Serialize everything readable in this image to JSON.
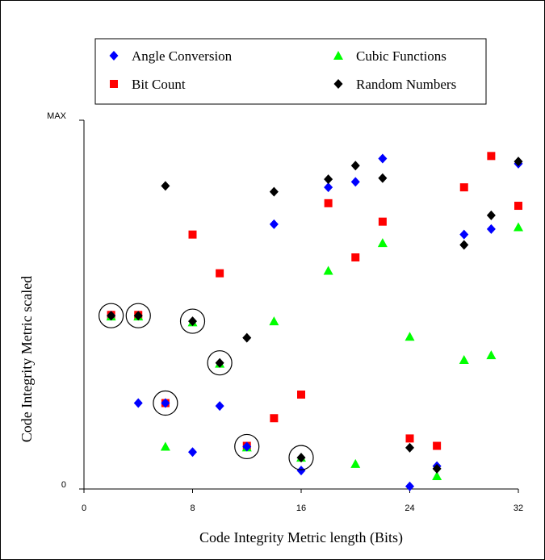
{
  "chart_data": {
    "type": "scatter",
    "title": "",
    "xlabel": "Code Integrity Metric length (Bits)",
    "ylabel": "Code Integrity Metric scaled",
    "x_ticks": [
      "0",
      "8",
      "16",
      "24",
      "32"
    ],
    "x_tick_values": [
      0,
      8,
      16,
      24,
      32
    ],
    "y_ticks": [
      "0",
      "MAX"
    ],
    "y_tick_values": [
      0,
      1
    ],
    "xlim": [
      0,
      32
    ],
    "ylim": [
      0,
      1
    ],
    "grid": false,
    "legend_position": "top",
    "series": [
      {
        "name": "Angle Conversion",
        "marker": "diamond",
        "color": "#0000ff",
        "points": [
          {
            "x": 2,
            "y": 0.47
          },
          {
            "x": 4,
            "y": 0.233
          },
          {
            "x": 6,
            "y": 0.233
          },
          {
            "x": 8,
            "y": 0.1
          },
          {
            "x": 10,
            "y": 0.225
          },
          {
            "x": 12,
            "y": 0.115
          },
          {
            "x": 14,
            "y": 0.718
          },
          {
            "x": 16,
            "y": 0.05
          },
          {
            "x": 18,
            "y": 0.818
          },
          {
            "x": 20,
            "y": 0.833
          },
          {
            "x": 22,
            "y": 0.896
          },
          {
            "x": 24,
            "y": 0.007
          },
          {
            "x": 26,
            "y": 0.062
          },
          {
            "x": 28,
            "y": 0.69
          },
          {
            "x": 30,
            "y": 0.705
          },
          {
            "x": 32,
            "y": 0.882
          }
        ]
      },
      {
        "name": "Bit Count",
        "marker": "square",
        "color": "#ff0000",
        "points": [
          {
            "x": 2,
            "y": 0.472
          },
          {
            "x": 4,
            "y": 0.472
          },
          {
            "x": 6,
            "y": 0.233
          },
          {
            "x": 8,
            "y": 0.69
          },
          {
            "x": 10,
            "y": 0.585
          },
          {
            "x": 12,
            "y": 0.117
          },
          {
            "x": 14,
            "y": 0.192
          },
          {
            "x": 16,
            "y": 0.256
          },
          {
            "x": 18,
            "y": 0.775
          },
          {
            "x": 20,
            "y": 0.628
          },
          {
            "x": 22,
            "y": 0.725
          },
          {
            "x": 24,
            "y": 0.137
          },
          {
            "x": 26,
            "y": 0.117
          },
          {
            "x": 28,
            "y": 0.818
          },
          {
            "x": 30,
            "y": 0.903
          },
          {
            "x": 32,
            "y": 0.768
          }
        ]
      },
      {
        "name": "Cubic Functions",
        "marker": "triangle",
        "color": "#00ff00",
        "points": [
          {
            "x": 2,
            "y": 0.468
          },
          {
            "x": 4,
            "y": 0.468
          },
          {
            "x": 6,
            "y": 0.115
          },
          {
            "x": 8,
            "y": 0.452
          },
          {
            "x": 10,
            "y": 0.34
          },
          {
            "x": 12,
            "y": 0.113
          },
          {
            "x": 14,
            "y": 0.455
          },
          {
            "x": 16,
            "y": 0.085
          },
          {
            "x": 18,
            "y": 0.592
          },
          {
            "x": 20,
            "y": 0.068
          },
          {
            "x": 22,
            "y": 0.667
          },
          {
            "x": 24,
            "y": 0.413
          },
          {
            "x": 26,
            "y": 0.035
          },
          {
            "x": 28,
            "y": 0.35
          },
          {
            "x": 30,
            "y": 0.363
          },
          {
            "x": 32,
            "y": 0.71
          }
        ]
      },
      {
        "name": "Random Numbers",
        "marker": "diamond",
        "color": "#000000",
        "points": [
          {
            "x": 2,
            "y": 0.47
          },
          {
            "x": 4,
            "y": 0.47
          },
          {
            "x": 6,
            "y": 0.822
          },
          {
            "x": 8,
            "y": 0.455
          },
          {
            "x": 10,
            "y": 0.342
          },
          {
            "x": 12,
            "y": 0.41
          },
          {
            "x": 14,
            "y": 0.806
          },
          {
            "x": 16,
            "y": 0.085
          },
          {
            "x": 18,
            "y": 0.84
          },
          {
            "x": 20,
            "y": 0.877
          },
          {
            "x": 22,
            "y": 0.843
          },
          {
            "x": 24,
            "y": 0.112
          },
          {
            "x": 26,
            "y": 0.055
          },
          {
            "x": 28,
            "y": 0.662
          },
          {
            "x": 30,
            "y": 0.742
          },
          {
            "x": 32,
            "y": 0.888
          }
        ]
      }
    ],
    "annotations": [
      {
        "type": "circle",
        "x": 2,
        "y": 0.47
      },
      {
        "type": "circle",
        "x": 4,
        "y": 0.47
      },
      {
        "type": "circle",
        "x": 6,
        "y": 0.233
      },
      {
        "type": "circle",
        "x": 8,
        "y": 0.455
      },
      {
        "type": "circle",
        "x": 10,
        "y": 0.342
      },
      {
        "type": "circle",
        "x": 12,
        "y": 0.115
      },
      {
        "type": "circle",
        "x": 16,
        "y": 0.085
      }
    ]
  }
}
